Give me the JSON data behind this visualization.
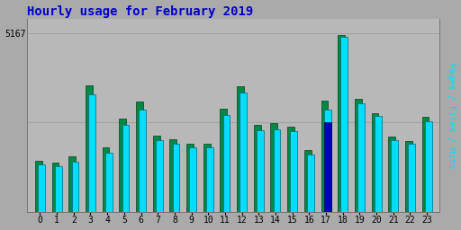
{
  "title": "Hourly usage for February 2019",
  "title_color": "#0000cc",
  "background_color": "#aaaaaa",
  "plot_bg_color": "#b8b8b8",
  "ylabel_right": "Pages / Files / Hits",
  "ytick_label": "5167",
  "hours": [
    0,
    1,
    2,
    3,
    4,
    5,
    6,
    7,
    8,
    9,
    10,
    11,
    12,
    13,
    14,
    15,
    16,
    17,
    18,
    19,
    20,
    21,
    22,
    23
  ],
  "hits": [
    0.265,
    0.258,
    0.282,
    0.66,
    0.332,
    0.485,
    0.575,
    0.4,
    0.38,
    0.362,
    0.362,
    0.542,
    0.67,
    0.458,
    0.462,
    0.45,
    0.32,
    0.575,
    0.98,
    0.61,
    0.535,
    0.402,
    0.382,
    0.508
  ],
  "pages": [
    0.288,
    0.276,
    0.31,
    0.71,
    0.36,
    0.52,
    0.62,
    0.425,
    0.408,
    0.382,
    0.38,
    0.578,
    0.705,
    0.488,
    0.495,
    0.475,
    0.348,
    0.625,
    0.99,
    0.632,
    0.552,
    0.42,
    0.398,
    0.532
  ],
  "files": [
    0.278,
    0.268,
    0.3,
    0.7,
    0.35,
    0.51,
    0.61,
    0.418,
    0.398,
    0.374,
    0.372,
    0.568,
    0.695,
    0.478,
    0.485,
    0.465,
    0.34,
    0.5,
    0.96,
    0.622,
    0.542,
    0.412,
    0.39,
    0.522
  ],
  "hits_color": "#00ddff",
  "pages_color": "#008844",
  "files_color": "#0000bb",
  "hits_edge": "#006688",
  "pages_edge": "#004422",
  "files_edge": "#000044",
  "special_hour_files": 17,
  "bar_width": 0.38
}
